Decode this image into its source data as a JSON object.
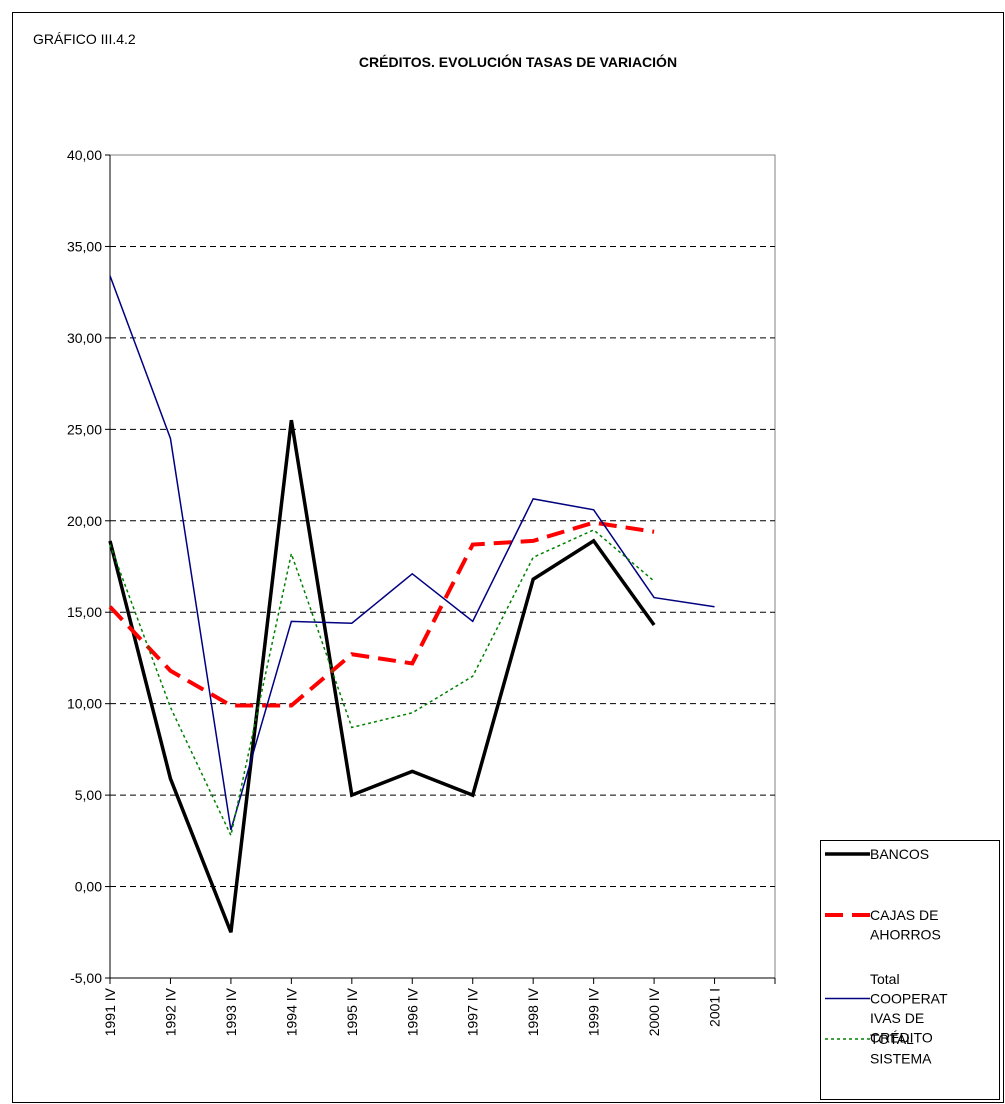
{
  "chart_data": {
    "type": "line",
    "label": "GRÁFICO III.4.2",
    "title": "CRÉDITOS. EVOLUCIÓN TASAS DE VARIACIÓN",
    "categories": [
      "1991 IV",
      "1992 IV",
      "1993 IV",
      "1994 IV",
      "1995 IV",
      "1996 IV",
      "1997 IV",
      "1998 IV",
      "1999 IV",
      "2000 IV",
      "2001 I",
      null
    ],
    "series": [
      {
        "name": "BANCOS",
        "color": "#000000",
        "style": "solid",
        "values": [
          18.9,
          5.9,
          -2.5,
          25.5,
          5.0,
          6.3,
          5.0,
          16.8,
          18.9,
          14.3,
          null,
          null
        ]
      },
      {
        "name": "CAJAS DE AHORROS",
        "color": "#ff0000",
        "style": "dashed",
        "values": [
          15.3,
          11.8,
          9.9,
          9.9,
          12.7,
          12.2,
          18.7,
          18.9,
          19.9,
          19.4,
          null,
          null
        ]
      },
      {
        "name": "Total COOPERATIVAS DE CRÉDITO",
        "color": "#000080",
        "style": "thin",
        "values": [
          33.4,
          24.5,
          3.1,
          14.5,
          14.4,
          17.1,
          14.5,
          21.2,
          20.6,
          15.8,
          15.3,
          null
        ]
      },
      {
        "name": "TOTAL SISTEMA",
        "color": "#008000",
        "style": "dotted",
        "values": [
          18.7,
          9.8,
          2.8,
          18.2,
          8.7,
          9.5,
          11.5,
          18.0,
          19.5,
          16.7,
          null,
          null
        ]
      }
    ],
    "ylim": [
      -5,
      40
    ],
    "yticks": [
      {
        "value": -5,
        "label": "-5,00"
      },
      {
        "value": 0,
        "label": "0,00"
      },
      {
        "value": 5,
        "label": "5,00"
      },
      {
        "value": 10,
        "label": "10,00"
      },
      {
        "value": 15,
        "label": "15,00"
      },
      {
        "value": 20,
        "label": "20,00"
      },
      {
        "value": 25,
        "label": "25,00"
      },
      {
        "value": 30,
        "label": "30,00"
      },
      {
        "value": 35,
        "label": "35,00"
      },
      {
        "value": 40,
        "label": "40,00"
      }
    ],
    "grid": true,
    "legend": "right"
  }
}
